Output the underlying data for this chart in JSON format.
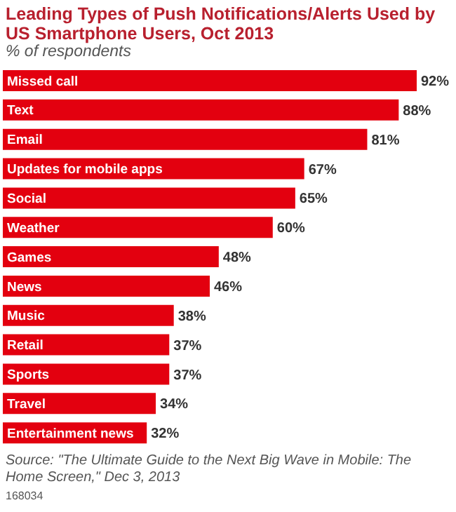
{
  "chart_data": {
    "type": "bar",
    "orientation": "horizontal",
    "title": "Leading Types of Push Notifications/Alerts Used by US Smartphone Users, Oct 2013",
    "subtitle": "% of respondents",
    "categories": [
      "Missed call",
      "Text",
      "Email",
      "Updates for mobile apps",
      "Social",
      "Weather",
      "Games",
      "News",
      "Music",
      "Retail",
      "Sports",
      "Travel",
      "Entertainment news"
    ],
    "values": [
      92,
      88,
      81,
      67,
      65,
      60,
      48,
      46,
      38,
      37,
      37,
      34,
      32
    ],
    "value_labels": [
      "92%",
      "88%",
      "81%",
      "67%",
      "65%",
      "60%",
      "48%",
      "46%",
      "38%",
      "37%",
      "37%",
      "34%",
      "32%"
    ],
    "color": "#e3000f",
    "annotations": [
      "Source: \"The Ultimate Guide to the Next Big Wave in Mobile: The Home Screen,\" Dec 3, 2013",
      "168034"
    ]
  }
}
